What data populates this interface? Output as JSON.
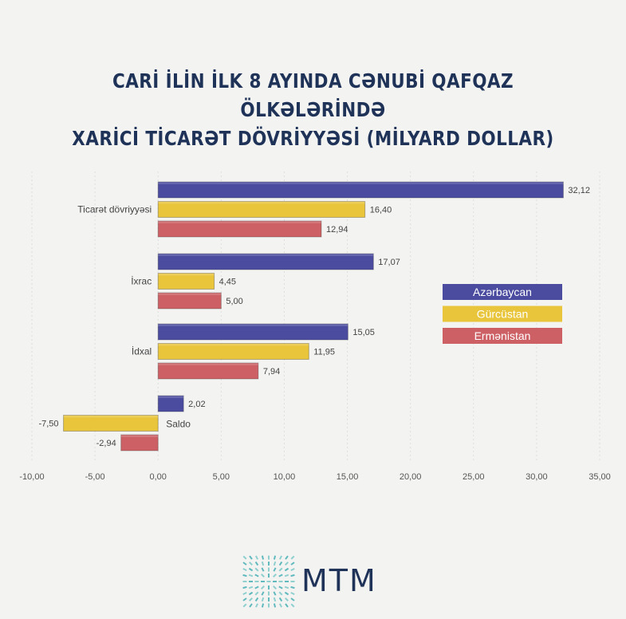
{
  "title_lines": [
    "CARİ İLİN İLK 8 AYINDA CƏNUBİ QAFQAZ ÖLKƏLƏRİNDƏ",
    "XARİCİ TİCARƏT DÖVRİYYƏSİ (MİLYARD DOLLAR)"
  ],
  "chart_data": {
    "type": "bar",
    "orientation": "horizontal",
    "title": "CARİ İLİN İLK 8 AYINDA CƏNUBİ QAFQAZ ÖLKƏLƏRİNDƏ XARİCİ TİCARƏT DÖVRİYYƏSİ (MİLYARD DOLLAR)",
    "categories": [
      "Ticarət dövriyyəsi",
      "İxrac",
      "İdxal",
      "Saldo"
    ],
    "series": [
      {
        "name": "Azərbaycan",
        "color": "#4b4ca0",
        "values": [
          32.12,
          17.07,
          15.05,
          2.02
        ],
        "labels": [
          "32,12",
          "17,07",
          "15,05",
          "2,02"
        ]
      },
      {
        "name": "Gürcüstan",
        "color": "#e8c53a",
        "values": [
          16.4,
          4.45,
          11.95,
          -7.5
        ],
        "labels": [
          "16,40",
          "4,45",
          "11,95",
          "-7,50"
        ]
      },
      {
        "name": "Ermənistan",
        "color": "#cd6064",
        "values": [
          12.94,
          5.0,
          7.94,
          -2.94
        ],
        "labels": [
          "12,94",
          "5,00",
          "7,94",
          "-2,94"
        ]
      }
    ],
    "xlim": [
      -10,
      35
    ],
    "xticks": [
      -10,
      -5,
      0,
      5,
      10,
      15,
      20,
      25,
      30,
      35
    ],
    "xtick_labels": [
      "-10,00",
      "-5,00",
      "0,00",
      "5,00",
      "10,00",
      "15,00",
      "20,00",
      "25,00",
      "30,00",
      "35,00"
    ],
    "grid": true,
    "legend_position": "right"
  },
  "logo": {
    "text": "MTM"
  }
}
